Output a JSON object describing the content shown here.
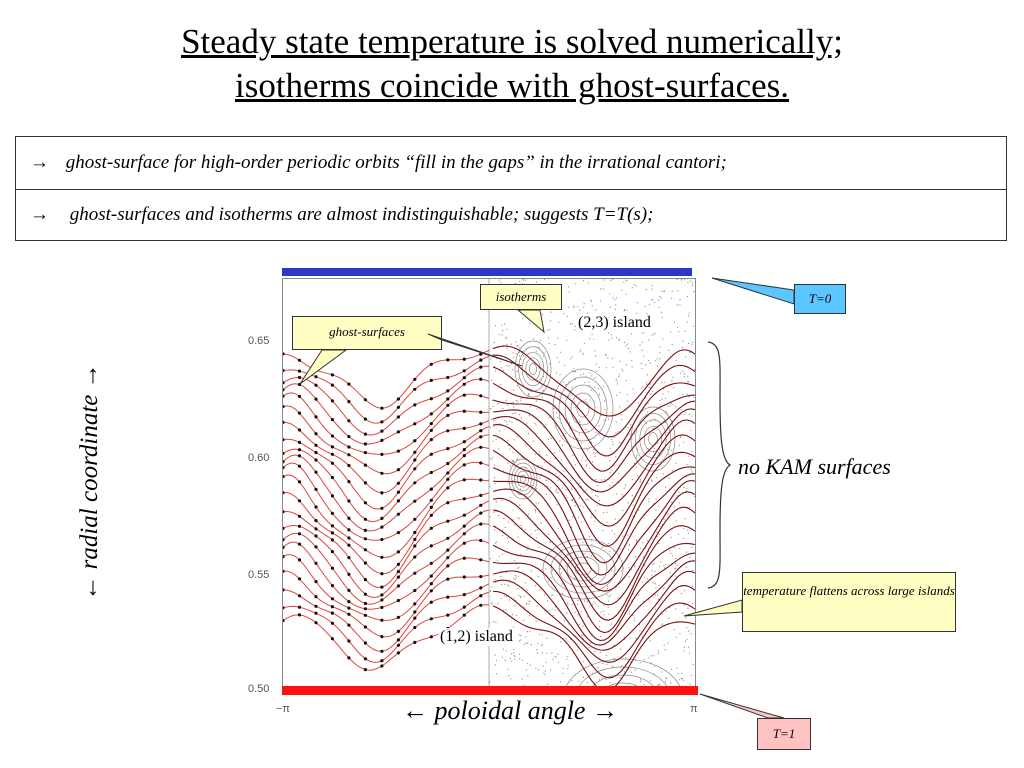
{
  "title": {
    "line1": "Steady state temperature is solved numerically;",
    "line2": "isotherms coincide with ghost-surfaces."
  },
  "bullets": [
    "ghost-surface for high-order periodic orbits “fill in the gaps” in the irrational cantori;",
    "ghost-surfaces and isotherms are almost indistinguishable; suggests T=T(s);"
  ],
  "bullet_arrow": "→",
  "plot": {
    "y_ticks": [
      "0.65",
      "0.60",
      "0.55",
      "0.50"
    ],
    "x_ticks": [
      "−π",
      "π"
    ],
    "ylabel": "← radial coordinate →",
    "xlabel": "← poloidal angle →"
  },
  "chart_data": {
    "type": "line",
    "xlabel": "← poloidal angle →",
    "ylabel": "← radial coordinate →",
    "x_ticks": [
      "−π",
      "π"
    ],
    "y_ticks": [
      0.65,
      0.6,
      0.55,
      0.5
    ],
    "ylim": [
      0.5,
      0.68
    ],
    "xlim": [
      -3.1416,
      3.1416
    ],
    "grid": false,
    "curve_colors": {
      "ghost_surfaces": "#e0463a",
      "isotherms": "#7a1010",
      "poincare": "#8a8a8a"
    },
    "boundary_colors": {
      "top": "#2b37c8",
      "bottom": "#ff1010"
    }
  },
  "labels": {
    "isotherms": "isotherms",
    "ghost_surfaces": "ghost-surfaces",
    "t0": "T=0",
    "t1": "T=1",
    "island_23": "(2,3)  island",
    "island_12": "(1,2)  island",
    "no_kam": "no KAM surfaces",
    "temperature_flattens": "temperature flattens across large islands"
  },
  "colors": {
    "callout_yellow": "#ffffc4",
    "callout_blue": "#5bc6ff",
    "callout_pink": "#ffc2c2"
  }
}
